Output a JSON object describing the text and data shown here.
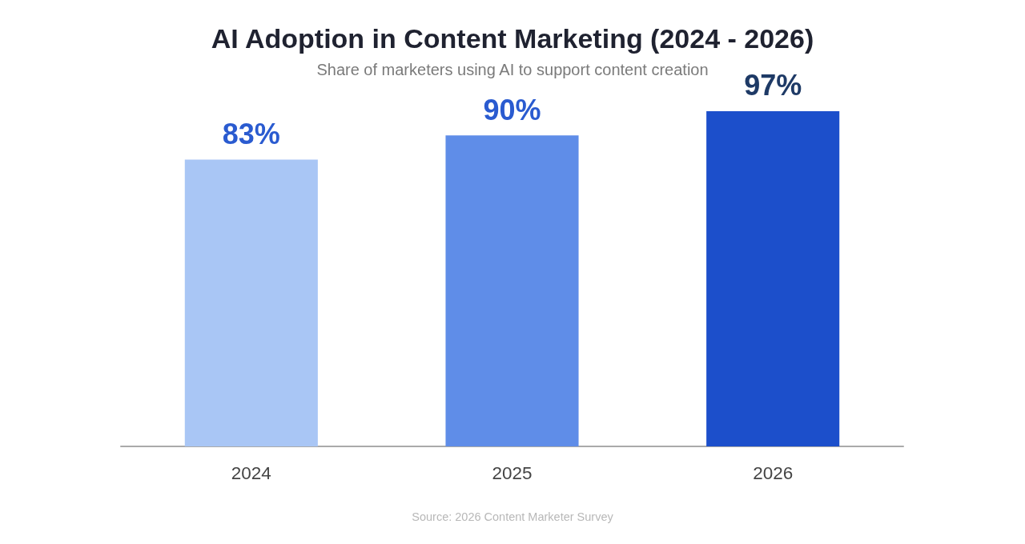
{
  "chart_data": {
    "type": "bar",
    "title": "AI Adoption in Content Marketing (2024 - 2026)",
    "subtitle": "Share of marketers using AI to support content creation",
    "categories": [
      "2024",
      "2025",
      "2026"
    ],
    "values": [
      83,
      90,
      97
    ],
    "colors": [
      "#a9c6f5",
      "#5f8de8",
      "#1c4fcb"
    ],
    "value_labels": [
      "83%",
      "90%",
      "97%"
    ],
    "annotations": [
      "Source: 2026 Content Marketer Survey"
    ],
    "tick_labels": "x"
  }
}
